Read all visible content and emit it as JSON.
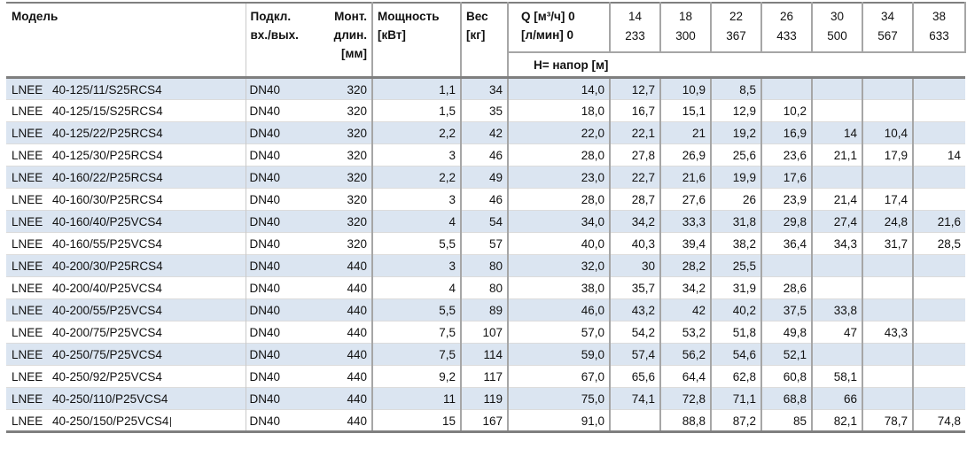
{
  "header": {
    "model": "Модель",
    "connection": "Подкл.\nвх./вых.",
    "mount_length": "Монт.\nдлин.\n[мм]",
    "power": "Мощность\n[кВт]",
    "weight": "Вес\n[кг]",
    "flow": {
      "q_m3h_label": "Q [м³/ч] 0",
      "q_lmin_label": "[л/мин] 0",
      "head_row_label": "H= напор [м]",
      "columns": [
        {
          "m3h": "14",
          "lmin": "233"
        },
        {
          "m3h": "18",
          "lmin": "300"
        },
        {
          "m3h": "22",
          "lmin": "367"
        },
        {
          "m3h": "26",
          "lmin": "433"
        },
        {
          "m3h": "30",
          "lmin": "500"
        },
        {
          "m3h": "34",
          "lmin": "567"
        },
        {
          "m3h": "38",
          "lmin": "633"
        }
      ]
    }
  },
  "brand": "LNEE",
  "rows": [
    {
      "model": "40-125/11/S25RCS4",
      "connection": "DN40",
      "mount_length": "320",
      "power": "1,1",
      "weight": "34",
      "heads": [
        "14,0",
        "12,7",
        "10,9",
        "8,5",
        "",
        "",
        "",
        ""
      ],
      "text_cursor": false
    },
    {
      "model": "40-125/15/S25RCS4",
      "connection": "DN40",
      "mount_length": "320",
      "power": "1,5",
      "weight": "35",
      "heads": [
        "18,0",
        "16,7",
        "15,1",
        "12,9",
        "10,2",
        "",
        "",
        ""
      ],
      "text_cursor": false
    },
    {
      "model": "40-125/22/P25RCS4",
      "connection": "DN40",
      "mount_length": "320",
      "power": "2,2",
      "weight": "42",
      "heads": [
        "22,0",
        "22,1",
        "21",
        "19,2",
        "16,9",
        "14",
        "10,4",
        ""
      ],
      "text_cursor": false
    },
    {
      "model": "40-125/30/P25RCS4",
      "connection": "DN40",
      "mount_length": "320",
      "power": "3",
      "weight": "46",
      "heads": [
        "28,0",
        "27,8",
        "26,9",
        "25,6",
        "23,6",
        "21,1",
        "17,9",
        "14"
      ],
      "text_cursor": false
    },
    {
      "model": "40-160/22/P25RCS4",
      "connection": "DN40",
      "mount_length": "320",
      "power": "2,2",
      "weight": "49",
      "heads": [
        "23,0",
        "22,7",
        "21,6",
        "19,9",
        "17,6",
        "",
        "",
        ""
      ],
      "text_cursor": false
    },
    {
      "model": "40-160/30/P25RCS4",
      "connection": "DN40",
      "mount_length": "320",
      "power": "3",
      "weight": "46",
      "heads": [
        "28,0",
        "28,7",
        "27,6",
        "26",
        "23,9",
        "21,4",
        "17,4",
        ""
      ],
      "text_cursor": false
    },
    {
      "model": "40-160/40/P25VCS4",
      "connection": "DN40",
      "mount_length": "320",
      "power": "4",
      "weight": "54",
      "heads": [
        "34,0",
        "34,2",
        "33,3",
        "31,8",
        "29,8",
        "27,4",
        "24,8",
        "21,6"
      ],
      "text_cursor": false
    },
    {
      "model": "40-160/55/P25VCS4",
      "connection": "DN40",
      "mount_length": "320",
      "power": "5,5",
      "weight": "57",
      "heads": [
        "40,0",
        "40,3",
        "39,4",
        "38,2",
        "36,4",
        "34,3",
        "31,7",
        "28,5"
      ],
      "text_cursor": false
    },
    {
      "model": "40-200/30/P25RCS4",
      "connection": "DN40",
      "mount_length": "440",
      "power": "3",
      "weight": "80",
      "heads": [
        "32,0",
        "30",
        "28,2",
        "25,5",
        "",
        "",
        "",
        ""
      ],
      "text_cursor": false
    },
    {
      "model": "40-200/40/P25VCS4",
      "connection": "DN40",
      "mount_length": "440",
      "power": "4",
      "weight": "80",
      "heads": [
        "38,0",
        "35,7",
        "34,2",
        "31,9",
        "28,6",
        "",
        "",
        ""
      ],
      "text_cursor": false
    },
    {
      "model": "40-200/55/P25VCS4",
      "connection": "DN40",
      "mount_length": "440",
      "power": "5,5",
      "weight": "89",
      "heads": [
        "46,0",
        "43,2",
        "42",
        "40,2",
        "37,5",
        "33,8",
        "",
        ""
      ],
      "text_cursor": false
    },
    {
      "model": "40-200/75/P25VCS4",
      "connection": "DN40",
      "mount_length": "440",
      "power": "7,5",
      "weight": "107",
      "heads": [
        "57,0",
        "54,2",
        "53,2",
        "51,8",
        "49,8",
        "47",
        "43,3",
        ""
      ],
      "text_cursor": false
    },
    {
      "model": "40-250/75/P25VCS4",
      "connection": "DN40",
      "mount_length": "440",
      "power": "7,5",
      "weight": "114",
      "heads": [
        "59,0",
        "57,4",
        "56,2",
        "54,6",
        "52,1",
        "",
        "",
        ""
      ],
      "text_cursor": false
    },
    {
      "model": "40-250/92/P25VCS4",
      "connection": "DN40",
      "mount_length": "440",
      "power": "9,2",
      "weight": "117",
      "heads": [
        "67,0",
        "65,6",
        "64,4",
        "62,8",
        "60,8",
        "58,1",
        "",
        ""
      ],
      "text_cursor": false
    },
    {
      "model": "40-250/110/P25VCS4",
      "connection": "DN40",
      "mount_length": "440",
      "power": "11",
      "weight": "119",
      "heads": [
        "75,0",
        "74,1",
        "72,8",
        "71,1",
        "68,8",
        "66",
        "",
        ""
      ],
      "text_cursor": false
    },
    {
      "model": "40-250/150/P25VCS4",
      "connection": "DN40",
      "mount_length": "440",
      "power": "15",
      "weight": "167",
      "heads": [
        "91,0",
        "",
        "88,8",
        "87,2",
        "85",
        "82,1",
        "78,7",
        "74,8"
      ],
      "text_cursor": true
    }
  ],
  "colors": {
    "row_alt": "#dbe5f1",
    "grid": "#a6a6a6",
    "grid_dark": "#7f7f7f",
    "divider": "#dcdcdc",
    "model_divider": "#c9c9c9"
  }
}
